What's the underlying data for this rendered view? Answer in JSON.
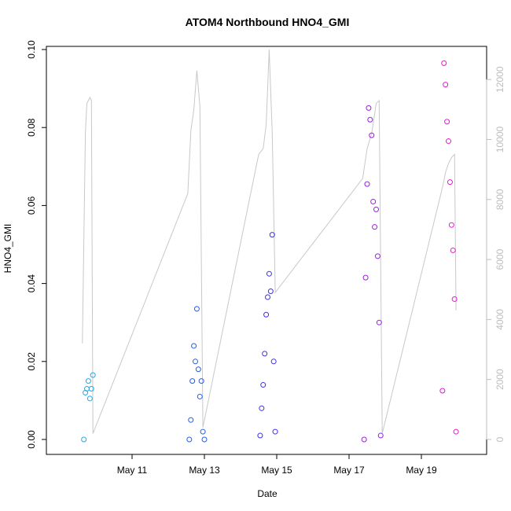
{
  "chart_data": {
    "type": "scatter",
    "title": "ATOM4 Northbound HNO4_GMI",
    "xlabel": "Date",
    "ylabel": "HNO4_GMI",
    "x_axis": {
      "type": "date",
      "range": [
        "2017-05-09T00:00",
        "2017-05-20T12:00"
      ],
      "ticks": [
        "2017-05-11",
        "2017-05-13",
        "2017-05-15",
        "2017-05-17",
        "2017-05-19"
      ],
      "tick_labels": [
        "May 11",
        "May 13",
        "May 15",
        "May 17",
        "May 19"
      ]
    },
    "y_axis": {
      "range": [
        0,
        0.1
      ],
      "ticks": [
        0,
        0.02,
        0.04,
        0.06,
        0.08,
        0.1
      ],
      "tick_labels": [
        "0.00",
        "0.02",
        "0.04",
        "0.06",
        "0.08",
        "0.10"
      ]
    },
    "y2_axis": {
      "label": "",
      "range": [
        0,
        13000
      ],
      "ticks": [
        0,
        2000,
        4000,
        6000,
        8000,
        10000,
        12000
      ],
      "tick_labels": [
        "0",
        "2000",
        "4000",
        "6000",
        "8000",
        "10000",
        "12000"
      ],
      "color": "#bdbdbd"
    },
    "grid": false,
    "series": [
      {
        "marker": "open-circle",
        "color": "#1eaaee",
        "x": [
          "2017-05-09T16:00",
          "2017-05-09T17:00",
          "2017-05-09T18:00",
          "2017-05-09T19:00",
          "2017-05-09T20:00",
          "2017-05-09T21:00",
          "2017-05-09T22:00"
        ],
        "y": [
          0.0,
          0.012,
          0.013,
          0.015,
          0.0105,
          0.013,
          0.0165
        ]
      },
      {
        "marker": "open-circle",
        "color": "#1f5ef0",
        "x": [
          "2017-05-12T14:00",
          "2017-05-12T15:00",
          "2017-05-12T16:00",
          "2017-05-12T17:00",
          "2017-05-12T18:00",
          "2017-05-12T19:00",
          "2017-05-12T20:00",
          "2017-05-12T21:00",
          "2017-05-12T22:00",
          "2017-05-12T23:00",
          "2017-05-13T00:00"
        ],
        "y": [
          0.0,
          0.005,
          0.015,
          0.024,
          0.02,
          0.0335,
          0.018,
          0.011,
          0.015,
          0.002,
          0.0
        ]
      },
      {
        "marker": "open-circle",
        "color": "#3c2ff0",
        "x": [
          "2017-05-14T13:00",
          "2017-05-14T14:00",
          "2017-05-14T15:00",
          "2017-05-14T16:00",
          "2017-05-14T17:00",
          "2017-05-14T18:00",
          "2017-05-14T19:00",
          "2017-05-14T20:00",
          "2017-05-14T21:00",
          "2017-05-14T22:00",
          "2017-05-14T23:00"
        ],
        "y": [
          0.001,
          0.008,
          0.014,
          0.022,
          0.032,
          0.0365,
          0.0425,
          0.038,
          0.0525,
          0.02,
          0.002
        ]
      },
      {
        "marker": "open-circle",
        "color": "#9a1ee6",
        "x": [
          "2017-05-17T10:00",
          "2017-05-17T11:00",
          "2017-05-17T12:00",
          "2017-05-17T13:00",
          "2017-05-17T14:00",
          "2017-05-17T15:00",
          "2017-05-17T16:00",
          "2017-05-17T17:00",
          "2017-05-17T18:00",
          "2017-05-17T19:00",
          "2017-05-17T20:00",
          "2017-05-17T21:00"
        ],
        "y": [
          0.0,
          0.0415,
          0.0655,
          0.085,
          0.082,
          0.078,
          0.061,
          0.0545,
          0.059,
          0.047,
          0.03,
          0.001
        ]
      },
      {
        "marker": "open-circle",
        "color": "#e916d6",
        "x": [
          "2017-05-19T14:00",
          "2017-05-19T15:00",
          "2017-05-19T16:00",
          "2017-05-19T17:00",
          "2017-05-19T18:00",
          "2017-05-19T19:00",
          "2017-05-19T20:00",
          "2017-05-19T21:00",
          "2017-05-19T22:00",
          "2017-05-19T23:00"
        ],
        "y": [
          0.0125,
          0.0965,
          0.091,
          0.0815,
          0.0765,
          0.066,
          0.055,
          0.0485,
          0.036,
          0.002
        ]
      }
    ],
    "altitude_series": {
      "axis": "right",
      "color": "#c8c8c8",
      "x": [
        "2017-05-09T15:00",
        "2017-05-09T17:00",
        "2017-05-09T18:00",
        "2017-05-09T20:00",
        "2017-05-09T21:00",
        "2017-05-09T22:00",
        "2017-05-12T13:00",
        "2017-05-12T15:00",
        "2017-05-12T17:00",
        "2017-05-12T19:00",
        "2017-05-12T21:00",
        "2017-05-12T23:00",
        "2017-05-14T12:00",
        "2017-05-14T15:00",
        "2017-05-14T17:00",
        "2017-05-14T19:00",
        "2017-05-14T21:00",
        "2017-05-14T23:00",
        "2017-05-17T09:00",
        "2017-05-17T12:00",
        "2017-05-17T15:00",
        "2017-05-17T18:00",
        "2017-05-17T20:00",
        "2017-05-17T22:00",
        "2017-05-19T14:00",
        "2017-05-19T16:00",
        "2017-05-19T18:00",
        "2017-05-19T20:00",
        "2017-05-19T22:00",
        "2017-05-19T23:00"
      ],
      "y": [
        3200,
        10200,
        11200,
        11400,
        11300,
        200,
        8200,
        10300,
        11000,
        12300,
        11100,
        400,
        9500,
        9700,
        10500,
        13000,
        10200,
        4900,
        8700,
        9700,
        10200,
        11200,
        11300,
        200,
        8400,
        8900,
        9200,
        9400,
        9500,
        4300
      ]
    }
  }
}
